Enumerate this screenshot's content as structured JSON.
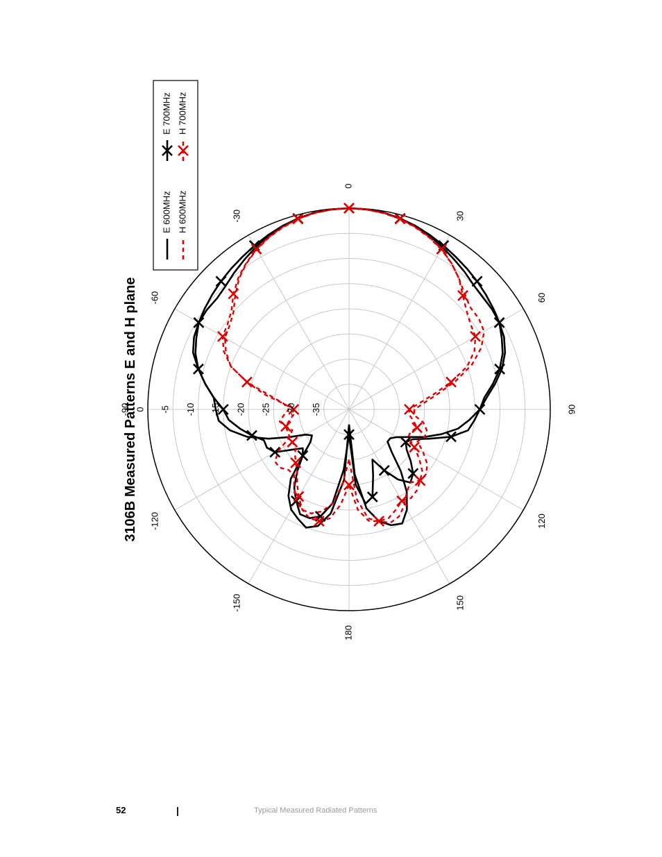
{
  "chart_data": {
    "type": "polar",
    "title": "3106B Measured Patterns E and H plane",
    "r_range": [
      -40,
      0
    ],
    "r_ticks": [
      0,
      -5,
      -10,
      -15,
      -20,
      -25,
      -30,
      -35
    ],
    "angle_ticks": [
      0,
      30,
      60,
      90,
      120,
      150,
      180,
      -150,
      -120,
      -90,
      -60,
      -30
    ],
    "grid": true,
    "legend_position": "top-right",
    "colors": {
      "e_series": "#000000",
      "h_series": "#e00000"
    },
    "series": [
      {
        "name": "E 600MHz",
        "style": "solid",
        "marker": "none",
        "points": [
          [
            -180,
            -37
          ],
          [
            -176,
            -26
          ],
          [
            -170,
            -19
          ],
          [
            -165,
            -16
          ],
          [
            -160,
            -15
          ],
          [
            -155,
            -16
          ],
          [
            -150,
            -17
          ],
          [
            -145,
            -19
          ],
          [
            -140,
            -22
          ],
          [
            -135,
            -27
          ],
          [
            -130,
            -30
          ],
          [
            -125,
            -31
          ],
          [
            -120,
            -30
          ],
          [
            -115,
            -27
          ],
          [
            -110,
            -23
          ],
          [
            -105,
            -19
          ],
          [
            -100,
            -16
          ],
          [
            -95,
            -14
          ],
          [
            -90,
            -13.5
          ],
          [
            -85,
            -13
          ],
          [
            -80,
            -11
          ],
          [
            -75,
            -9
          ],
          [
            -70,
            -7
          ],
          [
            -65,
            -6
          ],
          [
            -60,
            -5.5
          ],
          [
            -55,
            -5.5
          ],
          [
            -50,
            -5.7
          ],
          [
            -45,
            -5.3
          ],
          [
            -40,
            -4.5
          ],
          [
            -35,
            -3.7
          ],
          [
            -30,
            -2.8
          ],
          [
            -25,
            -2
          ],
          [
            -20,
            -1.3
          ],
          [
            -15,
            -0.7
          ],
          [
            -10,
            -0.3
          ],
          [
            -5,
            -0.1
          ],
          [
            0,
            0
          ],
          [
            5,
            -0.1
          ],
          [
            10,
            -0.3
          ],
          [
            15,
            -0.7
          ],
          [
            20,
            -1.3
          ],
          [
            25,
            -2
          ],
          [
            30,
            -2.8
          ],
          [
            35,
            -3.6
          ],
          [
            40,
            -4.3
          ],
          [
            45,
            -5
          ],
          [
            50,
            -5.3
          ],
          [
            55,
            -5.3
          ],
          [
            60,
            -5.5
          ],
          [
            65,
            -6
          ],
          [
            70,
            -7
          ],
          [
            75,
            -8.5
          ],
          [
            80,
            -10.5
          ],
          [
            85,
            -12.5
          ],
          [
            90,
            -14
          ],
          [
            95,
            -16
          ],
          [
            100,
            -18
          ],
          [
            105,
            -21
          ],
          [
            110,
            -24
          ],
          [
            115,
            -27
          ],
          [
            120,
            -29
          ],
          [
            125,
            -30
          ],
          [
            130,
            -30
          ],
          [
            135,
            -28
          ],
          [
            140,
            -24
          ],
          [
            145,
            -20
          ],
          [
            150,
            -17
          ],
          [
            155,
            -15
          ],
          [
            160,
            -15.5
          ],
          [
            165,
            -17
          ],
          [
            170,
            -20
          ],
          [
            175,
            -27
          ],
          [
            180,
            -37
          ]
        ]
      },
      {
        "name": "E 700MHz",
        "style": "solid",
        "marker": "x",
        "points": [
          [
            -180,
            -35
          ],
          [
            -175,
            -28
          ],
          [
            -170,
            -21
          ],
          [
            -165,
            -18
          ],
          [
            -160,
            -17
          ],
          [
            -155,
            -17
          ],
          [
            -150,
            -19
          ],
          [
            -145,
            -21
          ],
          [
            -140,
            -24
          ],
          [
            -135,
            -27
          ],
          [
            -130,
            -28
          ],
          [
            -125,
            -26
          ],
          [
            -120,
            -23
          ],
          [
            -115,
            -22
          ],
          [
            -110,
            -22
          ],
          [
            -105,
            -20
          ],
          [
            -100,
            -18
          ],
          [
            -95,
            -16
          ],
          [
            -90,
            -15
          ],
          [
            -85,
            -13
          ],
          [
            -80,
            -11
          ],
          [
            -75,
            -9
          ],
          [
            -70,
            -7.5
          ],
          [
            -65,
            -6.5
          ],
          [
            -60,
            -5.5
          ],
          [
            -55,
            -5
          ],
          [
            -50,
            -4.5
          ],
          [
            -45,
            -4
          ],
          [
            -40,
            -3.5
          ],
          [
            -35,
            -3
          ],
          [
            -30,
            -2.4
          ],
          [
            -25,
            -1.8
          ],
          [
            -20,
            -1.2
          ],
          [
            -15,
            -0.7
          ],
          [
            -10,
            -0.3
          ],
          [
            -5,
            -0.1
          ],
          [
            0,
            0
          ],
          [
            5,
            -0.1
          ],
          [
            10,
            -0.3
          ],
          [
            15,
            -0.7
          ],
          [
            20,
            -1.2
          ],
          [
            25,
            -1.8
          ],
          [
            30,
            -2.4
          ],
          [
            35,
            -3
          ],
          [
            40,
            -3.5
          ],
          [
            45,
            -4
          ],
          [
            50,
            -4.5
          ],
          [
            55,
            -5
          ],
          [
            60,
            -5.5
          ],
          [
            65,
            -6.5
          ],
          [
            70,
            -7.5
          ],
          [
            75,
            -9
          ],
          [
            80,
            -11
          ],
          [
            85,
            -13
          ],
          [
            90,
            -14
          ],
          [
            95,
            -15
          ],
          [
            100,
            -16
          ],
          [
            105,
            -19
          ],
          [
            110,
            -23
          ],
          [
            115,
            -26
          ],
          [
            120,
            -27
          ],
          [
            125,
            -26
          ],
          [
            130,
            -24
          ],
          [
            135,
            -22
          ],
          [
            140,
            -21
          ],
          [
            145,
            -23
          ],
          [
            150,
            -26
          ],
          [
            155,
            -29
          ],
          [
            160,
            -26
          ],
          [
            165,
            -22
          ],
          [
            170,
            -21
          ],
          [
            175,
            -25
          ],
          [
            180,
            -35
          ]
        ]
      },
      {
        "name": "H 600MHz",
        "style": "dashed",
        "marker": "none",
        "points": [
          [
            -180,
            -30
          ],
          [
            -175,
            -25
          ],
          [
            -170,
            -21
          ],
          [
            -165,
            -19
          ],
          [
            -160,
            -18
          ],
          [
            -155,
            -18
          ],
          [
            -150,
            -19
          ],
          [
            -145,
            -21
          ],
          [
            -140,
            -23
          ],
          [
            -135,
            -23
          ],
          [
            -130,
            -22
          ],
          [
            -125,
            -22
          ],
          [
            -120,
            -24
          ],
          [
            -115,
            -27
          ],
          [
            -110,
            -28
          ],
          [
            -105,
            -27
          ],
          [
            -100,
            -26
          ],
          [
            -95,
            -27
          ],
          [
            -90,
            -28
          ],
          [
            -85,
            -27
          ],
          [
            -80,
            -24
          ],
          [
            -75,
            -19
          ],
          [
            -70,
            -15
          ],
          [
            -65,
            -13
          ],
          [
            -60,
            -11.5
          ],
          [
            -55,
            -11
          ],
          [
            -50,
            -10
          ],
          [
            -45,
            -8
          ],
          [
            -40,
            -6
          ],
          [
            -35,
            -4.5
          ],
          [
            -30,
            -3.3
          ],
          [
            -25,
            -2.3
          ],
          [
            -20,
            -1.5
          ],
          [
            -15,
            -0.8
          ],
          [
            -10,
            -0.4
          ],
          [
            -5,
            -0.1
          ],
          [
            0,
            0
          ],
          [
            5,
            -0.1
          ],
          [
            10,
            -0.4
          ],
          [
            15,
            -0.8
          ],
          [
            20,
            -1.5
          ],
          [
            25,
            -2.3
          ],
          [
            30,
            -3.3
          ],
          [
            35,
            -4.5
          ],
          [
            40,
            -6
          ],
          [
            45,
            -7.5
          ],
          [
            50,
            -8.5
          ],
          [
            55,
            -8.5
          ],
          [
            60,
            -9
          ],
          [
            65,
            -11
          ],
          [
            70,
            -14
          ],
          [
            75,
            -18
          ],
          [
            80,
            -22
          ],
          [
            85,
            -25
          ],
          [
            90,
            -27
          ],
          [
            95,
            -27
          ],
          [
            100,
            -25
          ],
          [
            105,
            -24
          ],
          [
            110,
            -24
          ],
          [
            115,
            -25
          ],
          [
            120,
            -23
          ],
          [
            125,
            -21
          ],
          [
            130,
            -20
          ],
          [
            135,
            -20
          ],
          [
            140,
            -21
          ],
          [
            145,
            -20
          ],
          [
            150,
            -18
          ],
          [
            155,
            -16.5
          ],
          [
            160,
            -16
          ],
          [
            165,
            -17
          ],
          [
            170,
            -18
          ],
          [
            175,
            -22
          ],
          [
            180,
            -30
          ]
        ]
      },
      {
        "name": "H 700MHz",
        "style": "dashed",
        "marker": "x",
        "points": [
          [
            -180,
            -25
          ],
          [
            -175,
            -21
          ],
          [
            -170,
            -18
          ],
          [
            -165,
            -17
          ],
          [
            -160,
            -17
          ],
          [
            -155,
            -18
          ],
          [
            -150,
            -20
          ],
          [
            -145,
            -22
          ],
          [
            -140,
            -24
          ],
          [
            -135,
            -25
          ],
          [
            -130,
            -26
          ],
          [
            -125,
            -27
          ],
          [
            -120,
            -27
          ],
          [
            -115,
            -27
          ],
          [
            -110,
            -27
          ],
          [
            -105,
            -27
          ],
          [
            -100,
            -28
          ],
          [
            -95,
            -29
          ],
          [
            -90,
            -29
          ],
          [
            -85,
            -27
          ],
          [
            -80,
            -23
          ],
          [
            -75,
            -19
          ],
          [
            -70,
            -15
          ],
          [
            -65,
            -12.5
          ],
          [
            -60,
            -11
          ],
          [
            -55,
            -10.5
          ],
          [
            -50,
            -9.5
          ],
          [
            -45,
            -7.5
          ],
          [
            -40,
            -5.8
          ],
          [
            -35,
            -4.4
          ],
          [
            -30,
            -3.2
          ],
          [
            -25,
            -2.2
          ],
          [
            -20,
            -1.4
          ],
          [
            -15,
            -0.8
          ],
          [
            -10,
            -0.3
          ],
          [
            -5,
            -0.1
          ],
          [
            0,
            0
          ],
          [
            5,
            -0.1
          ],
          [
            10,
            -0.3
          ],
          [
            15,
            -0.8
          ],
          [
            20,
            -1.4
          ],
          [
            25,
            -2.2
          ],
          [
            30,
            -3.2
          ],
          [
            35,
            -4.5
          ],
          [
            40,
            -6
          ],
          [
            45,
            -8
          ],
          [
            50,
            -9.5
          ],
          [
            55,
            -10.5
          ],
          [
            60,
            -11
          ],
          [
            65,
            -12.5
          ],
          [
            70,
            -15
          ],
          [
            75,
            -19
          ],
          [
            80,
            -23
          ],
          [
            85,
            -26
          ],
          [
            90,
            -28
          ],
          [
            95,
            -28
          ],
          [
            100,
            -27
          ],
          [
            105,
            -26
          ],
          [
            110,
            -27
          ],
          [
            115,
            -27
          ],
          [
            120,
            -25
          ],
          [
            125,
            -23
          ],
          [
            130,
            -21
          ],
          [
            135,
            -20
          ],
          [
            140,
            -19
          ],
          [
            145,
            -18.5
          ],
          [
            150,
            -19
          ],
          [
            155,
            -18
          ],
          [
            160,
            -17
          ],
          [
            165,
            -17
          ],
          [
            170,
            -17.5
          ],
          [
            175,
            -20
          ],
          [
            180,
            -25
          ]
        ]
      }
    ]
  },
  "footer": {
    "page_number": "52",
    "separator": "|",
    "section_title": "Typical Measured Radiated Patterns"
  }
}
